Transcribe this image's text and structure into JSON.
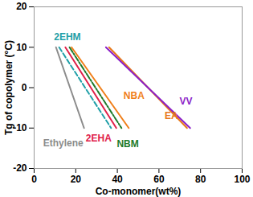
{
  "chart_data": {
    "type": "line",
    "x_label": "Co-monomer(wt%)",
    "y_label": "Tg of copolymer (°C)",
    "xlim": [
      0,
      100
    ],
    "xticks": [
      0,
      20,
      40,
      60,
      80,
      100
    ],
    "ylim": [
      -20,
      20
    ],
    "yticks": [
      -20,
      -10,
      0,
      10,
      20
    ],
    "grid": false,
    "series": [
      {
        "name": "Ethylene",
        "color": "#8c8c8c",
        "line_style": "solid",
        "x": [
          10.5,
          24
        ],
        "values": [
          10,
          -10
        ]
      },
      {
        "name": "2EHM",
        "color": "#1f9fa8",
        "line_style": "dashed",
        "x": [
          12,
          37
        ],
        "values": [
          10,
          -10
        ]
      },
      {
        "name": "2EHA",
        "color": "#e0204a",
        "line_style": "solid",
        "x": [
          15,
          39.5
        ],
        "values": [
          10,
          -10
        ]
      },
      {
        "name": "NBM",
        "color": "#1e7a2a",
        "line_style": "dashdot",
        "x": [
          17,
          42
        ],
        "values": [
          10,
          -10
        ]
      },
      {
        "name": "NBA",
        "color": "#f07f1a",
        "line_style": "solid",
        "x": [
          18,
          45.5
        ],
        "values": [
          10,
          -10
        ]
      },
      {
        "name": "EA",
        "color": "#e8781a",
        "line_style": "solid",
        "x": [
          36,
          73.5
        ],
        "values": [
          10,
          -10
        ]
      },
      {
        "name": "VV",
        "color": "#8b1fc7",
        "line_style": "solid",
        "x": [
          34.5,
          75
        ],
        "values": [
          10,
          -10
        ]
      }
    ],
    "annotations": [
      {
        "text": "2EHM",
        "x": 16,
        "y": 12.5
      },
      {
        "text": "Ethylene",
        "x": 14,
        "y": -13.8
      },
      {
        "text": "2EHA",
        "x": 31,
        "y": -12.5
      },
      {
        "text": "NBM",
        "x": 45,
        "y": -14
      },
      {
        "text": "NBA",
        "x": 48,
        "y": -2
      },
      {
        "text": "EA",
        "x": 66,
        "y": -7
      },
      {
        "text": "VV",
        "x": 73,
        "y": -3.5
      }
    ]
  }
}
